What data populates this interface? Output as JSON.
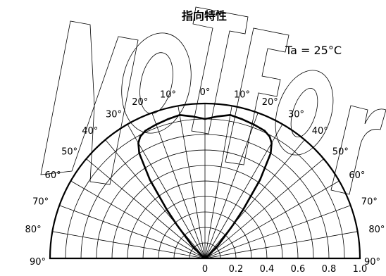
{
  "chart_data": {
    "type": "polar",
    "title": "指向特性",
    "annotation": "Ta = 25°C",
    "angle_range_deg": [
      -90,
      90
    ],
    "angle_step_deg": 10,
    "angle_labels": [
      "90°",
      "80°",
      "70°",
      "60°",
      "50°",
      "40°",
      "30°",
      "20°",
      "10°",
      "0°",
      "10°",
      "20°",
      "30°",
      "40°",
      "50°",
      "60°",
      "70°",
      "80°",
      "90°"
    ],
    "radial_range": [
      0,
      1.0
    ],
    "radial_labels": [
      "0",
      "0.2",
      "0.4",
      "0.6",
      "0.8",
      "1.0"
    ],
    "grid": true,
    "series": [
      {
        "angles_deg": [
          -90,
          -60,
          -50,
          -45,
          -40,
          -38,
          -35,
          -32,
          -30,
          -28,
          -25,
          -20,
          -15,
          -10,
          -5,
          0,
          5,
          10,
          15,
          20,
          25,
          28,
          30,
          32,
          35,
          38,
          40,
          45,
          50,
          60,
          90
        ],
        "values": [
          0,
          0,
          0.04,
          0.12,
          0.28,
          0.4,
          0.62,
          0.8,
          0.86,
          0.89,
          0.91,
          0.92,
          0.93,
          0.94,
          0.92,
          0.9,
          0.92,
          0.94,
          0.93,
          0.92,
          0.91,
          0.89,
          0.86,
          0.8,
          0.62,
          0.4,
          0.28,
          0.12,
          0.04,
          0,
          0
        ]
      }
    ]
  },
  "watermark": {
    "text": "Not for"
  }
}
